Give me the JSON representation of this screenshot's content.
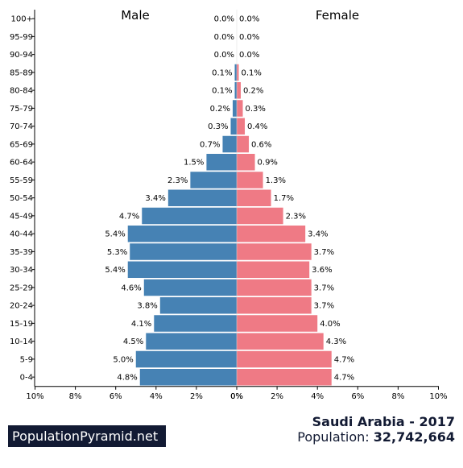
{
  "chart_data": {
    "type": "bar",
    "subtype": "population-pyramid",
    "categories": [
      "100+",
      "95-99",
      "90-94",
      "85-89",
      "80-84",
      "75-79",
      "70-74",
      "65-69",
      "60-64",
      "55-59",
      "50-54",
      "45-49",
      "40-44",
      "35-39",
      "30-34",
      "25-29",
      "20-24",
      "15-19",
      "10-14",
      "5-9",
      "0-4"
    ],
    "series": [
      {
        "name": "Male",
        "color": "#4682b4",
        "values": [
          0.0,
          0.0,
          0.0,
          0.1,
          0.1,
          0.2,
          0.3,
          0.7,
          1.5,
          2.3,
          3.4,
          4.7,
          5.4,
          5.3,
          5.4,
          4.6,
          3.8,
          4.1,
          4.5,
          5.0,
          4.8
        ],
        "labels": [
          "0.0%",
          "0.0%",
          "0.0%",
          "0.1%",
          "0.1%",
          "0.2%",
          "0.3%",
          "0.7%",
          "1.5%",
          "2.3%",
          "3.4%",
          "4.7%",
          "5.4%",
          "5.3%",
          "5.4%",
          "4.6%",
          "3.8%",
          "4.1%",
          "4.5%",
          "5.0%",
          "4.8%"
        ]
      },
      {
        "name": "Female",
        "color": "#ef7a85",
        "values": [
          0.0,
          0.0,
          0.0,
          0.1,
          0.2,
          0.3,
          0.4,
          0.6,
          0.9,
          1.3,
          1.7,
          2.3,
          3.4,
          3.7,
          3.6,
          3.7,
          3.7,
          4.0,
          4.3,
          4.7,
          4.7
        ],
        "labels": [
          "0.0%",
          "0.0%",
          "0.0%",
          "0.1%",
          "0.2%",
          "0.3%",
          "0.4%",
          "0.6%",
          "0.9%",
          "1.3%",
          "1.7%",
          "2.3%",
          "3.4%",
          "3.7%",
          "3.6%",
          "3.7%",
          "3.7%",
          "4.0%",
          "4.3%",
          "4.7%",
          "4.7%"
        ]
      }
    ],
    "xlim": [
      0,
      10
    ],
    "xticks_left": [
      "10%",
      "8%",
      "6%",
      "4%",
      "2%",
      "0%"
    ],
    "xticks_right": [
      "0%",
      "2%",
      "4%",
      "6%",
      "8%",
      "10%"
    ],
    "grid": false
  },
  "footer": {
    "brand": "PopulationPyramid.net",
    "country": "Saudi Arabia - 2017",
    "population_label": "Population:",
    "population_value": "32,742,664"
  }
}
